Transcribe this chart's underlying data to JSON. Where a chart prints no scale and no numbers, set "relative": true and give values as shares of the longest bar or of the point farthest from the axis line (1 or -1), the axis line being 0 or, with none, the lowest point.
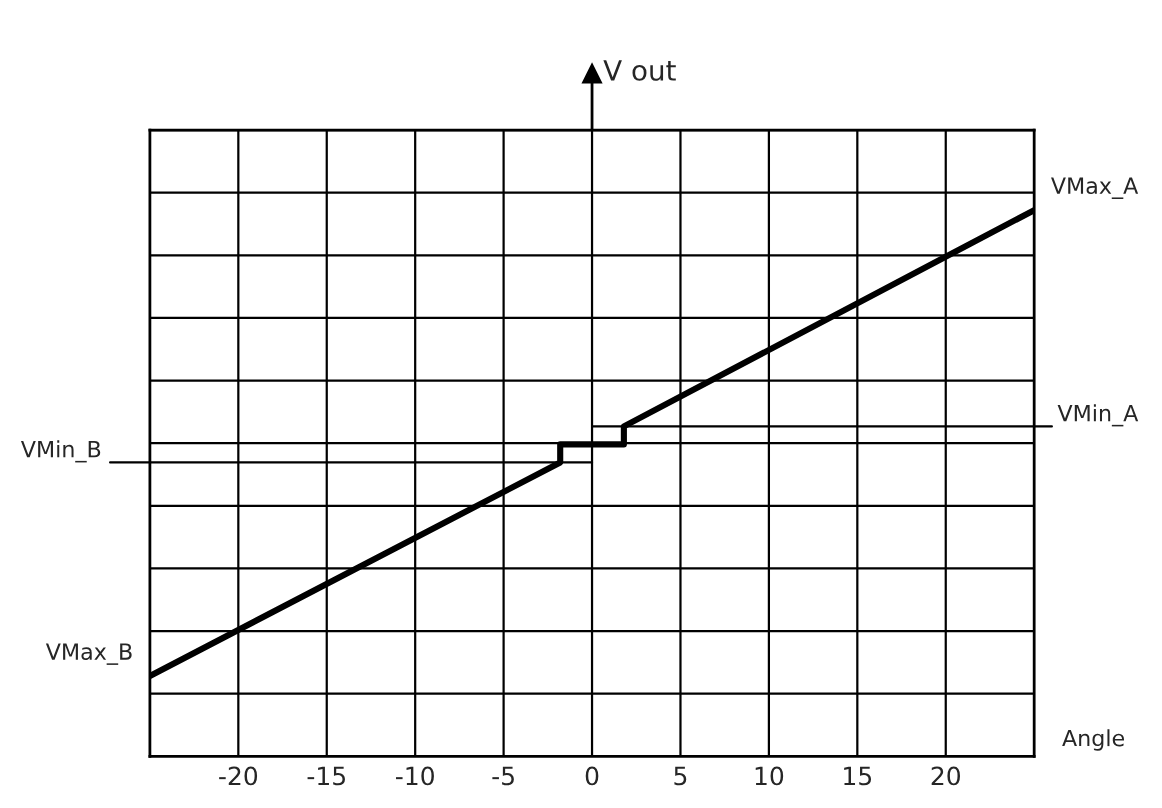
{
  "chart_data": {
    "type": "line",
    "relative": true,
    "xlabel": "Angle",
    "ylabel": "V out",
    "x": [
      -25,
      -1.8,
      -1.8,
      1.8,
      1.8,
      25
    ],
    "series": [
      {
        "color": "#000000",
        "values": [
          0.147,
          0.538,
          0.571,
          0.571,
          0.604,
          1.0
        ]
      }
    ],
    "xlim": [
      -25,
      25
    ],
    "xticks": [
      -20,
      -15,
      -10,
      -5,
      0,
      5,
      10,
      15,
      20
    ],
    "grid": true,
    "tick_labels": "x",
    "ref_lines": [
      {
        "axis": "y",
        "value": 0.538,
        "label": "VMin_B",
        "color": "#000000"
      },
      {
        "axis": "y",
        "value": 0.604,
        "label": "VMin_A",
        "color": "#000000"
      }
    ],
    "annotations": [
      {
        "text": "VMax_A",
        "x": 25,
        "y": 1.0
      },
      {
        "text": "VMax_B",
        "x": -25,
        "y": 0.147
      }
    ]
  }
}
